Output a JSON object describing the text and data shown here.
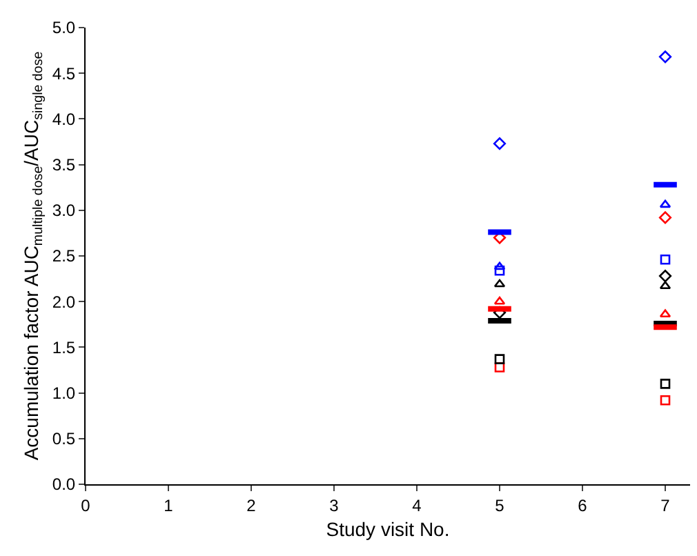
{
  "chart_data": {
    "type": "scatter",
    "xlabel": "Study visit No.",
    "ylabel": "Accumulation factor AUC$_{multiple dose}$/AUC$_{single dose}$",
    "xlim": [
      0,
      7.3
    ],
    "xticks": [
      0,
      1,
      2,
      3,
      4,
      5,
      6,
      7
    ],
    "ylim": [
      0,
      5
    ],
    "yticks": [
      {
        "value": 0,
        "label": "0.0"
      },
      {
        "value": 0.5,
        "label": "0.5"
      },
      {
        "value": 1,
        "label": "1.0"
      },
      {
        "value": 1.5,
        "label": "1.5"
      },
      {
        "value": 2,
        "label": "2.0"
      },
      {
        "value": 2.5,
        "label": "2.5"
      },
      {
        "value": 3,
        "label": "3.0"
      },
      {
        "value": 3.5,
        "label": "3.5"
      },
      {
        "value": 4,
        "label": "4.0"
      },
      {
        "value": 4.5,
        "label": "4.5"
      },
      {
        "value": 5,
        "label": "5.0"
      }
    ],
    "x": [
      5,
      7
    ],
    "series": [
      {
        "color": "#0000ff",
        "marker": "diamond",
        "values": [
          3.73,
          4.68
        ]
      },
      {
        "color": "#ff0000",
        "marker": "diamond",
        "values": [
          2.7,
          2.92
        ]
      },
      {
        "color": "#000000",
        "marker": "diamond",
        "values": [
          1.88,
          2.28
        ]
      },
      {
        "color": "#0000ff",
        "marker": "triangle",
        "values": [
          2.38,
          3.06
        ]
      },
      {
        "color": "#ff0000",
        "marker": "triangle",
        "values": [
          2.0,
          1.86
        ]
      },
      {
        "color": "#000000",
        "marker": "triangle",
        "values": [
          2.19,
          2.17
        ]
      },
      {
        "color": "#0000ff",
        "marker": "square",
        "values": [
          2.34,
          2.46
        ]
      },
      {
        "color": "#ff0000",
        "marker": "square",
        "values": [
          1.28,
          0.92
        ]
      },
      {
        "color": "#000000",
        "marker": "square",
        "values": [
          1.37,
          1.1
        ]
      },
      {
        "type": "line",
        "color": "#0000ff",
        "marker": "none",
        "x": [
          4.86,
          5.14
        ],
        "values": [
          2.76,
          2.76
        ]
      },
      {
        "type": "line",
        "color": "#0000ff",
        "marker": "none",
        "x": [
          6.86,
          7.14
        ],
        "values": [
          3.28,
          3.28
        ]
      },
      {
        "type": "line",
        "color": "#000000",
        "marker": "none",
        "x": [
          4.86,
          5.14
        ],
        "values": [
          1.79,
          1.79
        ]
      },
      {
        "type": "line",
        "color": "#000000",
        "marker": "none",
        "x": [
          6.86,
          7.14
        ],
        "values": [
          1.76,
          1.76
        ]
      },
      {
        "type": "line",
        "color": "#ff0000",
        "marker": "none",
        "x": [
          4.86,
          5.14
        ],
        "values": [
          1.92,
          1.92
        ]
      },
      {
        "type": "line",
        "color": "#ff0000",
        "marker": "none",
        "x": [
          6.86,
          7.14
        ],
        "values": [
          1.72,
          1.72
        ]
      }
    ]
  }
}
